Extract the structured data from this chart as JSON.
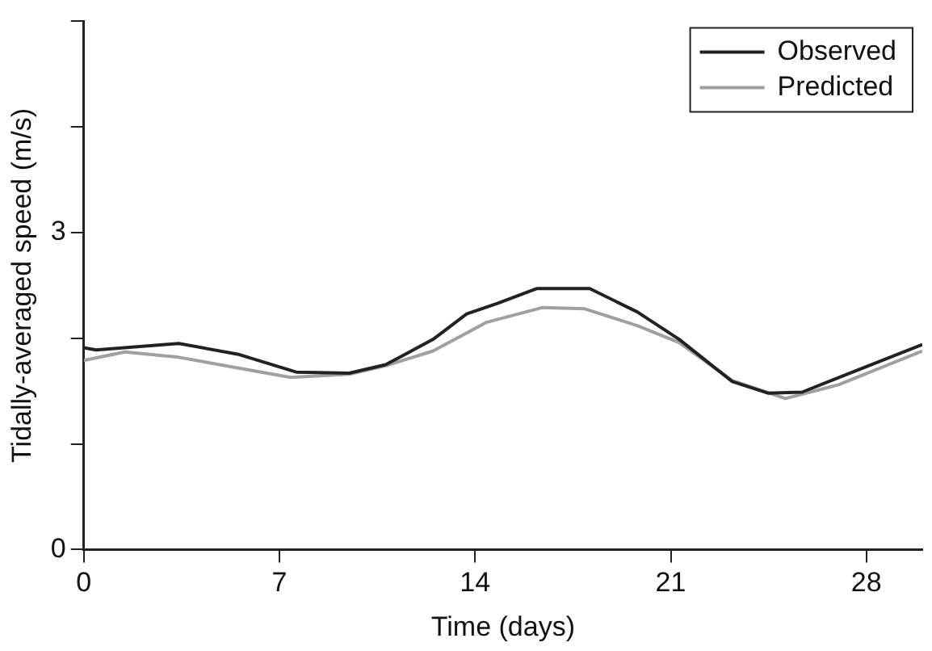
{
  "chart_data": {
    "type": "line",
    "xlabel": "Time (days)",
    "ylabel": "Tidally-averaged speed (m/s)",
    "xlim": [
      0,
      30
    ],
    "xticks": [
      0,
      7,
      14,
      21,
      28
    ],
    "ylim": [
      0,
      5
    ],
    "yticks": [
      0,
      {
        "value": 1,
        "label": null
      },
      {
        "value": 2,
        "label": null
      },
      3,
      {
        "value": 4,
        "label": null
      },
      {
        "value": 5,
        "label": null
      }
    ],
    "grid": false,
    "legend": "top right",
    "marker": "none",
    "line_style": "solid",
    "series": [
      {
        "name": "Observed",
        "color": "#222222",
        "x": [
          0,
          0.44,
          3.4,
          5.5,
          7.6,
          9.5,
          10.8,
          12.5,
          13.7,
          14.8,
          16.2,
          18.1,
          19.8,
          21.3,
          23.2,
          24.5,
          25.7,
          27.6,
          30
        ],
        "values": [
          1.91,
          1.89,
          1.95,
          1.85,
          1.68,
          1.67,
          1.75,
          1.99,
          2.23,
          2.33,
          2.47,
          2.47,
          2.25,
          1.99,
          1.59,
          1.48,
          1.49,
          1.69,
          1.94
        ]
      },
      {
        "name": "Predicted",
        "color": "#a0a0a0",
        "x": [
          0,
          1.47,
          3.4,
          5.5,
          7.4,
          9.5,
          10.8,
          12.5,
          14.4,
          16.4,
          17.9,
          19.8,
          21.3,
          23.2,
          25.1,
          27,
          30
        ],
        "values": [
          1.79,
          1.87,
          1.82,
          1.72,
          1.63,
          1.66,
          1.74,
          1.88,
          2.15,
          2.29,
          2.28,
          2.12,
          1.96,
          1.6,
          1.43,
          1.56,
          1.88
        ]
      }
    ]
  }
}
